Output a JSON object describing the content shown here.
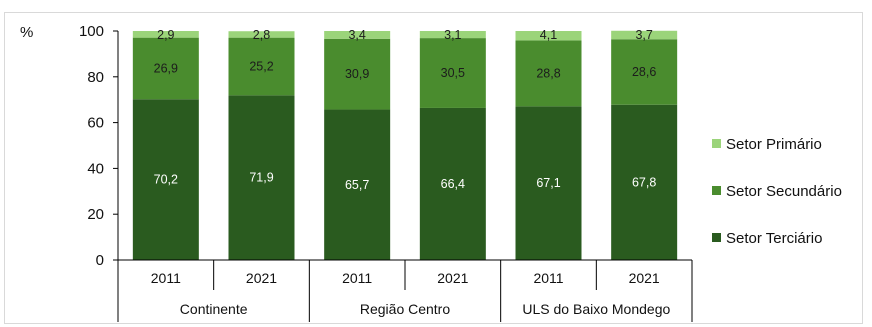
{
  "chart_data": {
    "type": "bar",
    "stacked": true,
    "ylabel": "%",
    "ylim": [
      0,
      100
    ],
    "yticks": [
      0,
      20,
      40,
      60,
      80,
      100
    ],
    "grid": false,
    "legend_position": "right",
    "x": [
      {
        "year": "2011",
        "group": "Continente"
      },
      {
        "year": "2021",
        "group": "Continente"
      },
      {
        "year": "2011",
        "group": "Região Centro"
      },
      {
        "year": "2021",
        "group": "Região Centro"
      },
      {
        "year": "2011",
        "group": "ULS do Baixo Mondego"
      },
      {
        "year": "2021",
        "group": "ULS do Baixo Mondego"
      }
    ],
    "groups": [
      "Continente",
      "Região Centro",
      "ULS do Baixo Mondego"
    ],
    "series": [
      {
        "name": "Setor Terciário",
        "color": "#2a5b1f",
        "values": [
          70.2,
          71.9,
          65.7,
          66.4,
          67.1,
          67.8
        ],
        "labels": [
          "70,2",
          "71,9",
          "65,7",
          "66,4",
          "67,1",
          "67,8"
        ]
      },
      {
        "name": "Setor Secundário",
        "color": "#4a8c2e",
        "values": [
          26.9,
          25.2,
          30.9,
          30.5,
          28.8,
          28.6
        ],
        "labels": [
          "26,9",
          "25,2",
          "30,9",
          "30,5",
          "28,8",
          "28,6"
        ]
      },
      {
        "name": "Setor Primário",
        "color": "#9bd47a",
        "values": [
          2.9,
          2.8,
          3.4,
          3.1,
          4.1,
          3.7
        ],
        "labels": [
          "2,9",
          "2,8",
          "3,4",
          "3,1",
          "4,1",
          "3,7"
        ]
      }
    ],
    "legend_order": [
      "Setor Primário",
      "Setor Secundário",
      "Setor Terciário"
    ]
  }
}
